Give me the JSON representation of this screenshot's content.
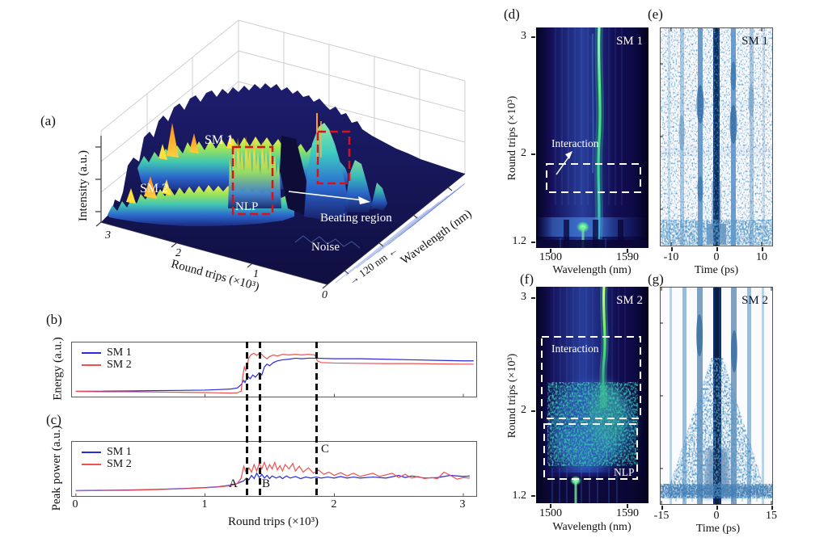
{
  "figure_labels": {
    "a": "(a)",
    "b": "(b)",
    "c": "(c)",
    "d": "(d)",
    "e": "(e)",
    "f": "(f)",
    "g": "(g)"
  },
  "panel_a": {
    "z_axis": "Intensity (a.u.)",
    "x_axis": "Round trips (×10³)",
    "y_axis": "Wavelength (nm)",
    "x_ticks": [
      "3",
      "2",
      "1",
      "0"
    ],
    "labels": {
      "sm1": "SM 1",
      "sm2": "SM 2",
      "nlp": "NLP",
      "noise": "Noise",
      "beating": "Beating region",
      "span": "→ 120 nm ←"
    }
  },
  "panel_b": {
    "y_axis": "Energy (a.u.)"
  },
  "panel_c": {
    "y_axis": "Peak power (a.u.)",
    "x_axis": "Round trips (×10³)",
    "x_ticks": [
      "0",
      "1",
      "2",
      "3"
    ],
    "markers": [
      "A",
      "B",
      "C"
    ]
  },
  "panel_d": {
    "title": "SM 1",
    "x_axis": "Wavelength (nm)",
    "x_ticks": [
      "1500",
      "1590"
    ],
    "y_axis": "Round trips (×10³)",
    "y_ticks": [
      "3",
      "2",
      "1.2"
    ],
    "annotation": "Interaction"
  },
  "panel_e": {
    "title": "SM 1",
    "x_axis": "Time (ps)",
    "x_ticks": [
      "-10",
      "0",
      "10"
    ]
  },
  "panel_f": {
    "title": "SM 2",
    "x_axis": "Wavelength (nm)",
    "x_ticks": [
      "1500",
      "1590"
    ],
    "y_axis": "Round trips (×10³)",
    "y_ticks": [
      "3",
      "2",
      "1.2"
    ],
    "annotations": {
      "interaction": "Interaction",
      "nlp": "NLP"
    }
  },
  "panel_g": {
    "title": "SM 2",
    "x_axis": "Time (ps)",
    "x_ticks": [
      "-15",
      "0",
      "15"
    ]
  },
  "chart_data": [
    {
      "panel": "a",
      "type": "surface",
      "zlabel": "Intensity (a.u.)",
      "xlabel": "Round trips (×10³)",
      "ylabel": "Wavelength (nm)",
      "xticks": [
        3,
        2,
        1,
        0
      ],
      "wavelength_span_nm": 120,
      "annotations": [
        "SM 1",
        "SM 2",
        "NLP",
        "Noise",
        "Beating region"
      ],
      "note": "3D spectral evolution: two soliton-molecule ridges (SM 1, SM 2) rise from a noise floor near round trip 1300; NLP burst and beating region marked with red dashed boxes."
    },
    {
      "panel": "b",
      "type": "line",
      "ylabel": "Energy (a.u.)",
      "xlim": [
        -0.03,
        3.1
      ],
      "dashed_x": [
        1.32,
        1.42,
        1.86
      ],
      "series": [
        {
          "name": "SM 1",
          "color": "#2a2ae0",
          "points": [
            [
              0,
              0.1
            ],
            [
              0.2,
              0.1
            ],
            [
              0.4,
              0.105
            ],
            [
              0.6,
              0.11
            ],
            [
              0.8,
              0.115
            ],
            [
              1.0,
              0.12
            ],
            [
              1.1,
              0.13
            ],
            [
              1.2,
              0.14
            ],
            [
              1.25,
              0.16
            ],
            [
              1.28,
              0.22
            ],
            [
              1.3,
              0.3
            ],
            [
              1.31,
              0.26
            ],
            [
              1.33,
              0.38
            ],
            [
              1.35,
              0.33
            ],
            [
              1.37,
              0.4
            ],
            [
              1.39,
              0.36
            ],
            [
              1.42,
              0.44
            ],
            [
              1.44,
              0.4
            ],
            [
              1.46,
              0.55
            ],
            [
              1.48,
              0.6
            ],
            [
              1.5,
              0.57
            ],
            [
              1.53,
              0.63
            ],
            [
              1.56,
              0.66
            ],
            [
              1.6,
              0.68
            ],
            [
              1.65,
              0.69
            ],
            [
              1.7,
              0.71
            ],
            [
              1.75,
              0.7
            ],
            [
              1.8,
              0.71
            ],
            [
              1.86,
              0.71
            ],
            [
              2.0,
              0.7
            ],
            [
              2.2,
              0.7
            ],
            [
              2.4,
              0.69
            ],
            [
              2.6,
              0.68
            ],
            [
              2.8,
              0.67
            ],
            [
              3.0,
              0.66
            ],
            [
              3.08,
              0.66
            ]
          ]
        },
        {
          "name": "SM 2",
          "color": "#ef5050",
          "points": [
            [
              0,
              0.095
            ],
            [
              0.2,
              0.09
            ],
            [
              0.4,
              0.09
            ],
            [
              0.6,
              0.085
            ],
            [
              0.8,
              0.08
            ],
            [
              1.0,
              0.075
            ],
            [
              1.1,
              0.07
            ],
            [
              1.2,
              0.065
            ],
            [
              1.25,
              0.07
            ],
            [
              1.28,
              0.1
            ],
            [
              1.295,
              0.42
            ],
            [
              1.305,
              0.55
            ],
            [
              1.315,
              0.48
            ],
            [
              1.325,
              0.52
            ],
            [
              1.335,
              0.68
            ],
            [
              1.345,
              0.74
            ],
            [
              1.36,
              0.78
            ],
            [
              1.38,
              0.8
            ],
            [
              1.4,
              0.76
            ],
            [
              1.42,
              0.8
            ],
            [
              1.44,
              0.78
            ],
            [
              1.46,
              0.73
            ],
            [
              1.48,
              0.7
            ],
            [
              1.5,
              0.74
            ],
            [
              1.53,
              0.77
            ],
            [
              1.56,
              0.75
            ],
            [
              1.6,
              0.78
            ],
            [
              1.65,
              0.77
            ],
            [
              1.7,
              0.78
            ],
            [
              1.75,
              0.77
            ],
            [
              1.8,
              0.78
            ],
            [
              1.85,
              0.77
            ],
            [
              1.87,
              0.66
            ],
            [
              1.9,
              0.63
            ],
            [
              2.0,
              0.62
            ],
            [
              2.2,
              0.615
            ],
            [
              2.4,
              0.61
            ],
            [
              2.6,
              0.61
            ],
            [
              2.8,
              0.605
            ],
            [
              3.0,
              0.6
            ],
            [
              3.08,
              0.6
            ]
          ]
        }
      ]
    },
    {
      "panel": "c",
      "type": "line",
      "ylabel": "Peak power (a.u.)",
      "xlabel": "Round trips (×10³)",
      "xticks": [
        0,
        1,
        2,
        3
      ],
      "xlim": [
        -0.03,
        3.1
      ],
      "dashed_x": [
        1.32,
        1.42,
        1.86
      ],
      "marker_labels": [
        "A",
        "B",
        "C"
      ],
      "series": [
        {
          "name": "SM 1",
          "color": "#2a2ae0",
          "points": [
            [
              0,
              0.1
            ],
            [
              0.2,
              0.105
            ],
            [
              0.4,
              0.11
            ],
            [
              0.6,
              0.12
            ],
            [
              0.8,
              0.135
            ],
            [
              1.0,
              0.155
            ],
            [
              1.1,
              0.17
            ],
            [
              1.2,
              0.2
            ],
            [
              1.25,
              0.23
            ],
            [
              1.3,
              0.28
            ],
            [
              1.32,
              0.33
            ],
            [
              1.34,
              0.3
            ],
            [
              1.36,
              0.38
            ],
            [
              1.38,
              0.32
            ],
            [
              1.4,
              0.42
            ],
            [
              1.42,
              0.34
            ],
            [
              1.44,
              0.4
            ],
            [
              1.46,
              0.33
            ],
            [
              1.48,
              0.38
            ],
            [
              1.5,
              0.32
            ],
            [
              1.52,
              0.37
            ],
            [
              1.55,
              0.33
            ],
            [
              1.58,
              0.36
            ],
            [
              1.6,
              0.32
            ],
            [
              1.63,
              0.37
            ],
            [
              1.66,
              0.33
            ],
            [
              1.7,
              0.36
            ],
            [
              1.74,
              0.32
            ],
            [
              1.78,
              0.35
            ],
            [
              1.82,
              0.33
            ],
            [
              1.86,
              0.35
            ],
            [
              1.9,
              0.33
            ],
            [
              1.95,
              0.35
            ],
            [
              2.0,
              0.33
            ],
            [
              2.05,
              0.36
            ],
            [
              2.1,
              0.33
            ],
            [
              2.15,
              0.35
            ],
            [
              2.2,
              0.33
            ],
            [
              2.3,
              0.35
            ],
            [
              2.4,
              0.33
            ],
            [
              2.5,
              0.38
            ],
            [
              2.55,
              0.34
            ],
            [
              2.6,
              0.37
            ],
            [
              2.7,
              0.33
            ],
            [
              2.8,
              0.34
            ],
            [
              2.9,
              0.38
            ],
            [
              3.0,
              0.36
            ],
            [
              3.05,
              0.37
            ]
          ]
        },
        {
          "name": "SM 2",
          "color": "#ef5050",
          "points": [
            [
              0,
              0.095
            ],
            [
              0.2,
              0.1
            ],
            [
              0.4,
              0.105
            ],
            [
              0.6,
              0.115
            ],
            [
              0.8,
              0.13
            ],
            [
              1.0,
              0.15
            ],
            [
              1.1,
              0.165
            ],
            [
              1.2,
              0.19
            ],
            [
              1.25,
              0.23
            ],
            [
              1.28,
              0.33
            ],
            [
              1.3,
              0.55
            ],
            [
              1.32,
              0.42
            ],
            [
              1.34,
              0.52
            ],
            [
              1.36,
              0.44
            ],
            [
              1.38,
              0.58
            ],
            [
              1.4,
              0.46
            ],
            [
              1.42,
              0.6
            ],
            [
              1.44,
              0.5
            ],
            [
              1.46,
              0.62
            ],
            [
              1.48,
              0.48
            ],
            [
              1.5,
              0.58
            ],
            [
              1.52,
              0.5
            ],
            [
              1.54,
              0.62
            ],
            [
              1.56,
              0.48
            ],
            [
              1.58,
              0.56
            ],
            [
              1.6,
              0.46
            ],
            [
              1.62,
              0.58
            ],
            [
              1.65,
              0.5
            ],
            [
              1.68,
              0.6
            ],
            [
              1.7,
              0.46
            ],
            [
              1.73,
              0.55
            ],
            [
              1.76,
              0.44
            ],
            [
              1.8,
              0.52
            ],
            [
              1.84,
              0.42
            ],
            [
              1.88,
              0.48
            ],
            [
              1.92,
              0.4
            ],
            [
              1.96,
              0.44
            ],
            [
              2.0,
              0.38
            ],
            [
              2.05,
              0.43
            ],
            [
              2.1,
              0.37
            ],
            [
              2.15,
              0.42
            ],
            [
              2.2,
              0.36
            ],
            [
              2.3,
              0.42
            ],
            [
              2.35,
              0.36
            ],
            [
              2.45,
              0.42
            ],
            [
              2.5,
              0.34
            ],
            [
              2.55,
              0.4
            ],
            [
              2.6,
              0.33
            ],
            [
              2.65,
              0.36
            ],
            [
              2.7,
              0.32
            ],
            [
              2.75,
              0.34
            ],
            [
              2.8,
              0.32
            ],
            [
              2.85,
              0.44
            ],
            [
              2.9,
              0.38
            ],
            [
              2.95,
              0.31
            ],
            [
              3.0,
              0.34
            ],
            [
              3.05,
              0.33
            ]
          ]
        }
      ]
    },
    {
      "panel": "d",
      "type": "heatmap",
      "label": "SM 1",
      "xlabel": "Wavelength (nm)",
      "xlim": [
        1500,
        1590
      ],
      "ylabel": "Round trips (×10³)",
      "ylim": [
        1.2,
        3.1
      ],
      "annotation": "Interaction",
      "dashed_box_y": [
        1.67,
        1.92
      ],
      "note": "Bright spectral line near 1550 nm from round trip ~1400 to 3100; buildup features below 1400."
    },
    {
      "panel": "e",
      "type": "heatmap",
      "label": "SM 1",
      "xlabel": "Time (ps)",
      "xlim": [
        -12,
        13
      ],
      "ylim": [
        1.2,
        3.1
      ],
      "note": "Temporal evolution: central pulse at 0 ps with satellite pulses near ±4 and ±8 ps."
    },
    {
      "panel": "f",
      "type": "heatmap",
      "label": "SM 2",
      "xlabel": "Wavelength (nm)",
      "xlim": [
        1500,
        1590
      ],
      "ylabel": "Round trips (×10³)",
      "ylim": [
        1.2,
        3.1
      ],
      "dashed_boxes_y": [
        [
          1.95,
          2.65
        ],
        [
          1.35,
          1.93
        ]
      ],
      "annotations": [
        "Interaction",
        "NLP"
      ],
      "note": "Noise-like pulse region (NLP) below round trip ~1900, interaction region 2000-2650."
    },
    {
      "panel": "g",
      "type": "heatmap",
      "label": "SM 2",
      "xlabel": "Time (ps)",
      "xlim": [
        -15,
        15
      ],
      "ylim": [
        1.2,
        3.1
      ],
      "note": "Central pulse with broad speckled temporal spread widening toward early round trips."
    }
  ]
}
